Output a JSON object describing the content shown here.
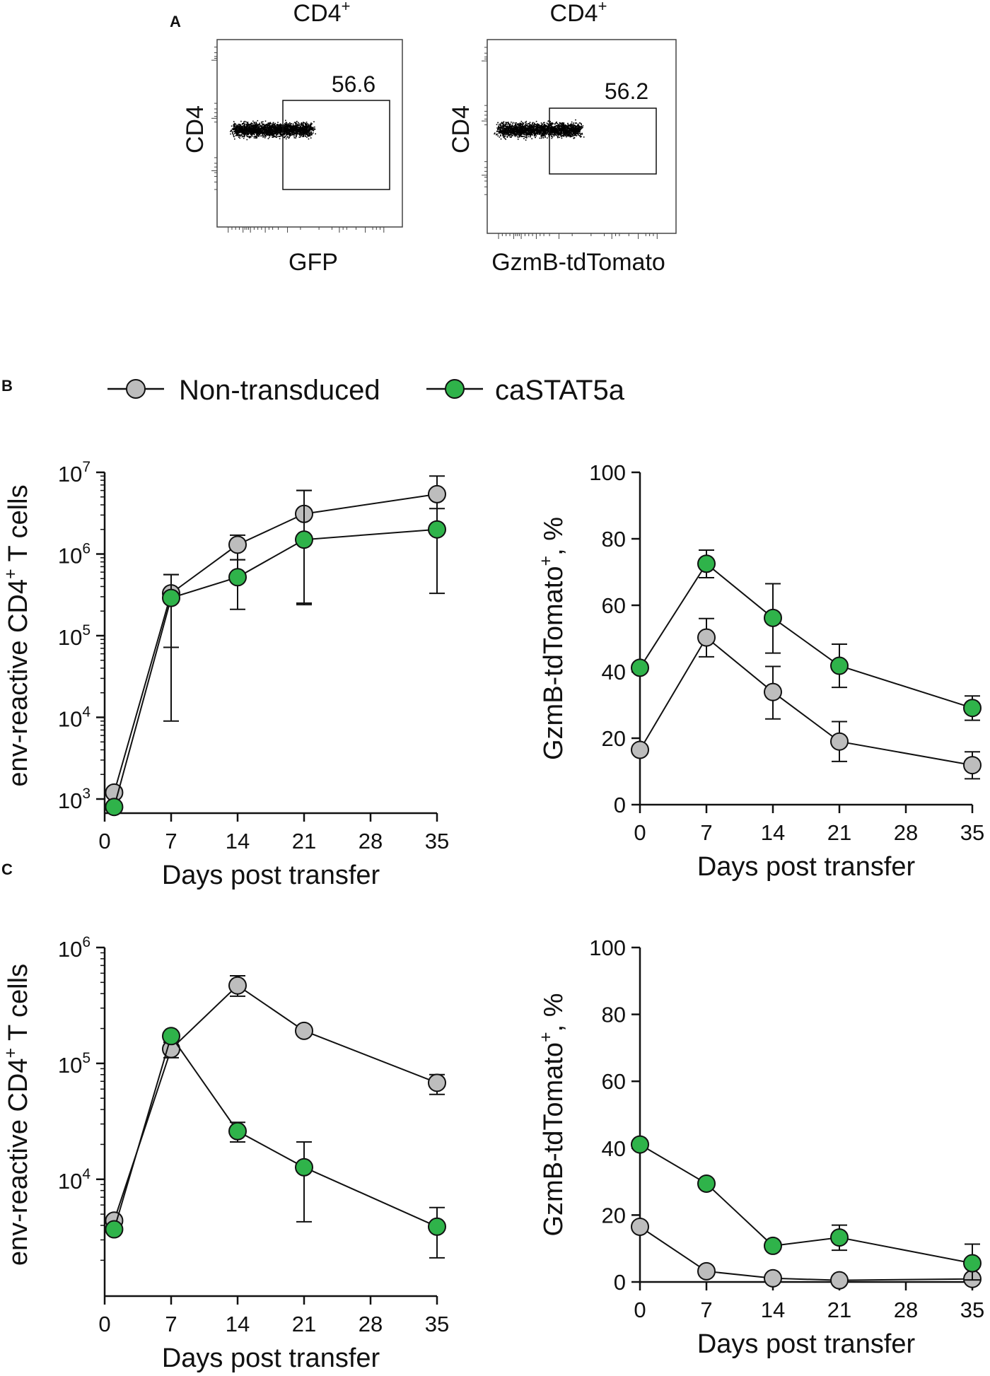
{
  "figure": {
    "panel_labels": [
      "A",
      "B",
      "C"
    ],
    "legend": {
      "items": [
        {
          "name": "Non-transduced",
          "color": "#bdbdbd"
        },
        {
          "name": "caSTAT5a",
          "color": "#2fb34a"
        }
      ]
    }
  },
  "colors": {
    "non_transduced": "#bdbdbd",
    "castat5a": "#2fb34a",
    "line": "#111111"
  },
  "flow": [
    {
      "title": "CD4",
      "title_sup": "+",
      "ylabel": "CD4",
      "xlabel": "GFP",
      "gate_value": "56.6"
    },
    {
      "title": "CD4",
      "title_sup": "+",
      "ylabel": "CD4",
      "xlabel": "GzmB-tdTomato",
      "gate_value": "56.2"
    }
  ],
  "chart_data": [
    {
      "id": "B-left",
      "type": "line",
      "yscale": "log",
      "xlabel": "Days post transfer",
      "ylabel_main": "env-reactive CD4",
      "ylabel_sup": "+",
      "ylabel_tail": " T cells",
      "xlim": [
        0,
        35
      ],
      "xticks": [
        "0",
        "7",
        "14",
        "21",
        "28",
        "35"
      ],
      "ylim": [
        1000,
        10000000
      ],
      "yticks": [
        {
          "base": "10",
          "exp": "3",
          "value": 1000
        },
        {
          "base": "10",
          "exp": "4",
          "value": 10000
        },
        {
          "base": "10",
          "exp": "5",
          "value": 100000
        },
        {
          "base": "10",
          "exp": "6",
          "value": 1000000
        },
        {
          "base": "10",
          "exp": "7",
          "value": 10000000
        }
      ],
      "series": [
        {
          "name": "Non-transduced",
          "x": [
            1,
            7,
            14,
            21,
            35
          ],
          "y": [
            1200,
            330000,
            1300000,
            3100000,
            5400000
          ],
          "err_low": [
            null,
            9000,
            850000,
            250000,
            2000000
          ],
          "err_high": [
            null,
            560000,
            1700000,
            6000000,
            9000000
          ]
        },
        {
          "name": "caSTAT5a",
          "x": [
            1,
            7,
            14,
            21,
            35
          ],
          "y": [
            800,
            290000,
            520000,
            1500000,
            2000000
          ],
          "err_low": [
            null,
            72000,
            210000,
            240000,
            330000
          ],
          "err_high": [
            null,
            560000,
            850000,
            6000000,
            3600000
          ]
        }
      ]
    },
    {
      "id": "B-right",
      "type": "line",
      "yscale": "linear",
      "xlabel": "Days post transfer",
      "ylabel_main": "GzmB-tdTomato",
      "ylabel_sup": "+",
      "ylabel_tail": ", %",
      "xlim": [
        0,
        35
      ],
      "xticks": [
        "0",
        "7",
        "14",
        "21",
        "28",
        "35"
      ],
      "ylim": [
        0,
        100
      ],
      "yticks": [
        "0",
        "20",
        "40",
        "60",
        "80",
        "100"
      ],
      "series": [
        {
          "name": "Non-transduced",
          "x": [
            0,
            7,
            14,
            21,
            35
          ],
          "y": [
            16.5,
            50.3,
            33.9,
            19.0,
            11.9
          ],
          "err_low": [
            null,
            44.5,
            25.8,
            13.0,
            7.8
          ],
          "err_high": [
            null,
            56.0,
            41.6,
            25.0,
            15.9
          ]
        },
        {
          "name": "caSTAT5a",
          "x": [
            0,
            7,
            14,
            21,
            35
          ],
          "y": [
            41.2,
            72.5,
            56.2,
            41.8,
            29.1
          ],
          "err_low": [
            null,
            68.3,
            45.6,
            35.3,
            25.4
          ],
          "err_high": [
            null,
            76.6,
            66.5,
            48.3,
            32.7
          ]
        }
      ]
    },
    {
      "id": "C-left",
      "type": "line",
      "yscale": "log",
      "xlabel": "Days post transfer",
      "ylabel_main": "env-reactive CD4",
      "ylabel_sup": "+",
      "ylabel_tail": " T cells",
      "xlim": [
        0,
        35
      ],
      "xticks": [
        "0",
        "7",
        "14",
        "21",
        "28",
        "35"
      ],
      "ylim": [
        1300,
        1000000
      ],
      "yticks": [
        {
          "base": "10",
          "exp": "4",
          "value": 10000
        },
        {
          "base": "10",
          "exp": "5",
          "value": 100000
        },
        {
          "base": "10",
          "exp": "6",
          "value": 1000000
        }
      ],
      "series": [
        {
          "name": "Non-transduced",
          "x": [
            1,
            7,
            14,
            21,
            35
          ],
          "y": [
            4400,
            133000,
            470000,
            191000,
            68000
          ],
          "err_low": [
            null,
            112000,
            380000,
            null,
            54000
          ],
          "err_high": [
            null,
            152000,
            570000,
            null,
            80000
          ]
        },
        {
          "name": "caSTAT5a",
          "x": [
            1,
            7,
            14,
            21,
            35
          ],
          "y": [
            3700,
            172000,
            26000,
            12700,
            3900
          ],
          "err_low": [
            null,
            null,
            21000,
            4300,
            2100
          ],
          "err_high": [
            null,
            null,
            31000,
            21000,
            5700
          ]
        }
      ]
    },
    {
      "id": "C-right",
      "type": "line",
      "yscale": "linear",
      "xlabel": "Days post transfer",
      "ylabel_main": "GzmB-tdTomato",
      "ylabel_sup": "+",
      "ylabel_tail": ", %",
      "xlim": [
        0,
        35
      ],
      "xticks": [
        "0",
        "7",
        "14",
        "21",
        "28",
        "35"
      ],
      "ylim": [
        0,
        100
      ],
      "yticks": [
        "0",
        "20",
        "40",
        "60",
        "80",
        "100"
      ],
      "series": [
        {
          "name": "Non-transduced",
          "x": [
            0,
            7,
            14,
            21,
            35
          ],
          "y": [
            16.5,
            3.2,
            1.1,
            0.5,
            0.9
          ],
          "err_low": [
            null,
            null,
            null,
            null,
            null
          ],
          "err_high": [
            null,
            null,
            null,
            null,
            null
          ]
        },
        {
          "name": "caSTAT5a",
          "x": [
            0,
            7,
            14,
            21,
            35
          ],
          "y": [
            41.1,
            29.4,
            10.8,
            13.3,
            5.6
          ],
          "err_low": [
            null,
            null,
            null,
            9.5,
            0.6
          ],
          "err_high": [
            null,
            null,
            null,
            17.0,
            11.3
          ]
        }
      ]
    }
  ]
}
